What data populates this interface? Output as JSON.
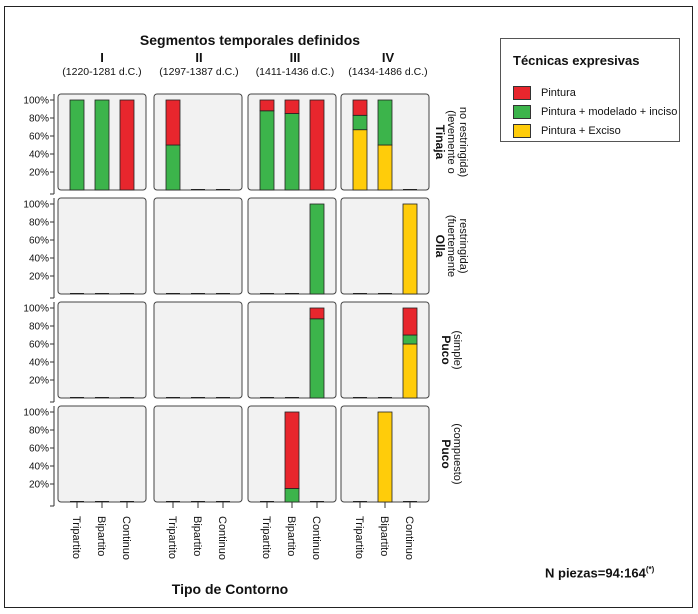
{
  "chart_data": {
    "type": "bar",
    "stacked": true,
    "title": "Segmentos temporales definidos",
    "xlabel": "Tipo de Contorno",
    "categories": [
      "Tripartito",
      "Bipartito",
      "Continuo"
    ],
    "y_ticks": [
      "100%",
      "80%",
      "60%",
      "40%",
      "20%"
    ],
    "ylim": [
      0,
      100
    ],
    "periods": [
      {
        "roman": "I",
        "range": "(1220-1281 d.C.)"
      },
      {
        "roman": "II",
        "range": "(1297-1387 d.C.)"
      },
      {
        "roman": "III",
        "range": "(1411-1436 d.C.)"
      },
      {
        "roman": "IV",
        "range": "(1434-1486 d.C.)"
      }
    ],
    "rows": [
      {
        "label_bold": "Tinaja",
        "label_sub": [
          "(levemente o",
          "no restringida)"
        ]
      },
      {
        "label_bold": "Olla",
        "label_sub": [
          "(fuertemente",
          "restringida)"
        ]
      },
      {
        "label_bold": "Puco",
        "label_sub": [
          "(simple)"
        ]
      },
      {
        "label_bold": "Puco",
        "label_sub": [
          "(compuesto)"
        ]
      }
    ],
    "legend": {
      "title": "Técnicas expresivas",
      "position": "top-right",
      "items": [
        {
          "name": "Pintura",
          "color": "#e8262d"
        },
        {
          "name": "Pintura + modelado + inciso",
          "color": "#3cb44b"
        },
        {
          "name": "Pintura + Exciso",
          "color": "#ffcc0a"
        }
      ]
    },
    "series_order_bottom_to_top": [
      "Pintura + Exciso",
      "Pintura + modelado + inciso",
      "Pintura"
    ],
    "data": [
      [
        [
          [
            0,
            100,
            0
          ],
          [
            0,
            100,
            0
          ],
          [
            100,
            0,
            0
          ]
        ],
        [
          [
            50,
            50,
            0
          ],
          [
            0,
            0,
            0
          ],
          [
            0,
            0,
            0
          ]
        ],
        [
          [
            12,
            88,
            0
          ],
          [
            15,
            85,
            0
          ],
          [
            100,
            0,
            0
          ]
        ],
        [
          [
            17,
            16,
            67
          ],
          [
            0,
            50,
            50
          ],
          [
            0,
            0,
            0
          ]
        ]
      ],
      [
        [
          [
            0,
            0,
            0
          ],
          [
            0,
            0,
            0
          ],
          [
            0,
            0,
            0
          ]
        ],
        [
          [
            0,
            0,
            0
          ],
          [
            0,
            0,
            0
          ],
          [
            0,
            0,
            0
          ]
        ],
        [
          [
            0,
            0,
            0
          ],
          [
            0,
            0,
            0
          ],
          [
            0,
            100,
            0
          ]
        ],
        [
          [
            0,
            0,
            0
          ],
          [
            0,
            0,
            0
          ],
          [
            0,
            0,
            100
          ]
        ]
      ],
      [
        [
          [
            0,
            0,
            0
          ],
          [
            0,
            0,
            0
          ],
          [
            0,
            0,
            0
          ]
        ],
        [
          [
            0,
            0,
            0
          ],
          [
            0,
            0,
            0
          ],
          [
            0,
            0,
            0
          ]
        ],
        [
          [
            0,
            0,
            0
          ],
          [
            0,
            0,
            0
          ],
          [
            12,
            88,
            0
          ]
        ],
        [
          [
            0,
            0,
            0
          ],
          [
            0,
            0,
            0
          ],
          [
            30,
            10,
            60
          ]
        ]
      ],
      [
        [
          [
            0,
            0,
            0
          ],
          [
            0,
            0,
            0
          ],
          [
            0,
            0,
            0
          ]
        ],
        [
          [
            0,
            0,
            0
          ],
          [
            0,
            0,
            0
          ],
          [
            0,
            0,
            0
          ]
        ],
        [
          [
            0,
            0,
            0
          ],
          [
            85,
            15,
            0
          ],
          [
            0,
            0,
            0
          ]
        ],
        [
          [
            0,
            0,
            0
          ],
          [
            0,
            0,
            100
          ],
          [
            0,
            0,
            0
          ]
        ]
      ]
    ],
    "note": "N piezas=94:164",
    "note_sup": "(*)"
  }
}
